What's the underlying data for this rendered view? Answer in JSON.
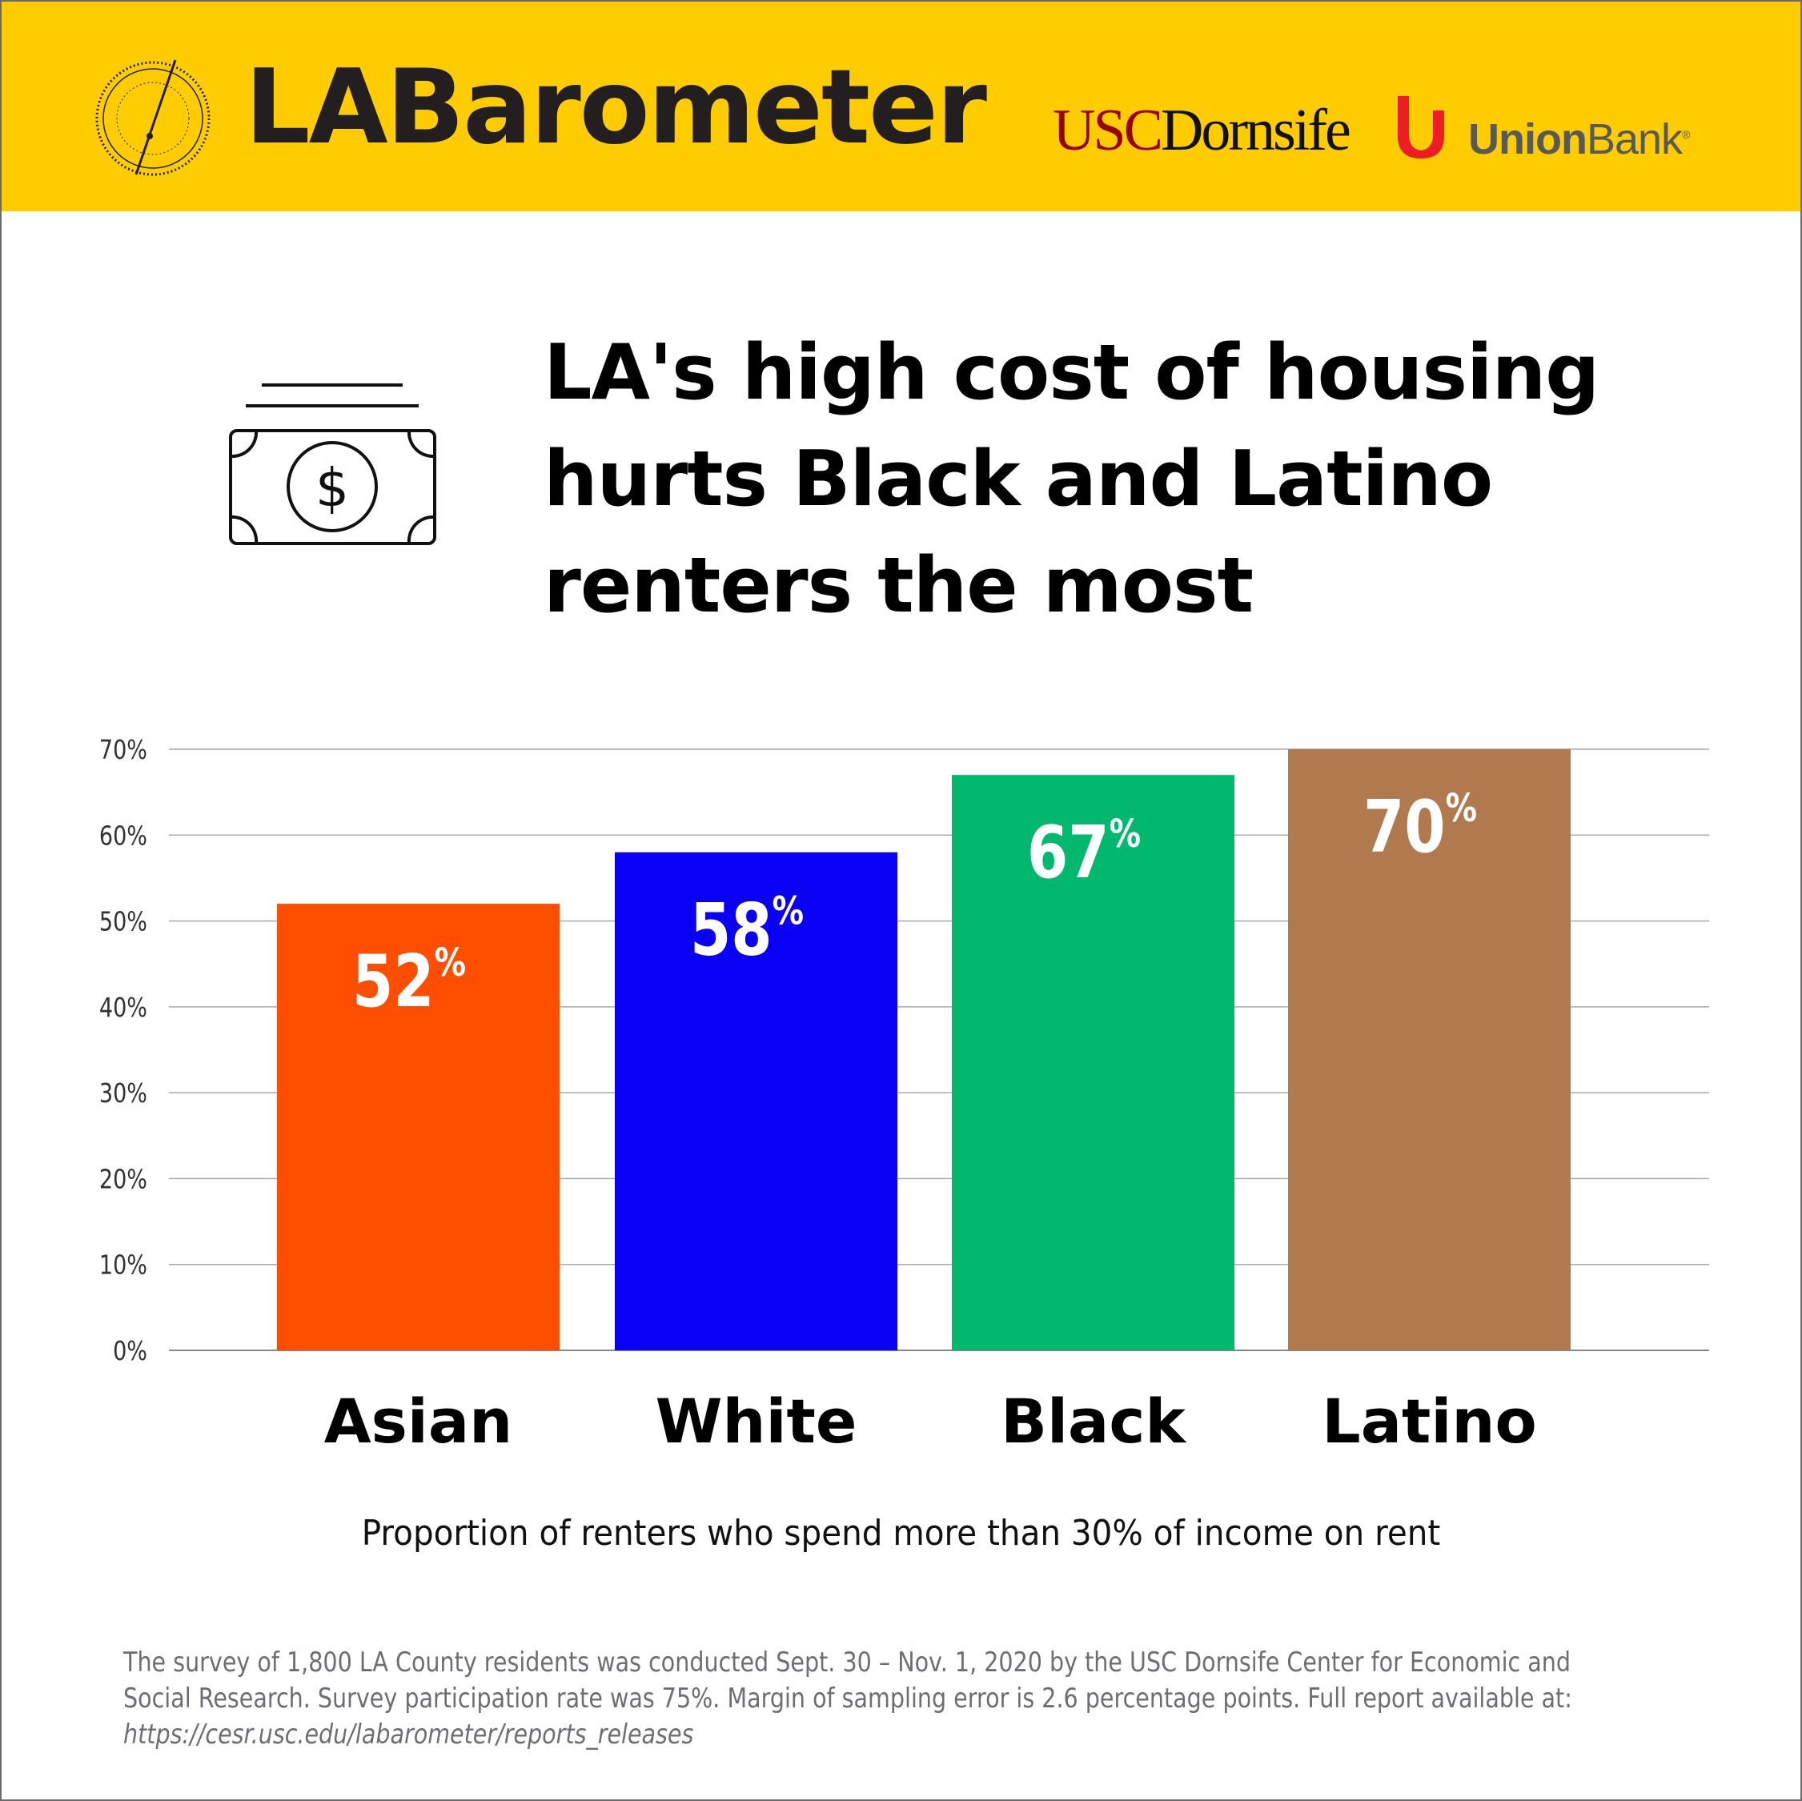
{
  "header": {
    "brand": "LABarometer",
    "partner1_a": "USC",
    "partner1_b": "Dornsife",
    "partner2_a": "Union",
    "partner2_b": "Bank",
    "partner2_mark": "®",
    "background": "#FFCC00"
  },
  "icon": "money-bill-icon",
  "title_lines": [
    "LA's high cost of housing",
    "hurts Black and Latino",
    "renters the most"
  ],
  "chart_data": {
    "type": "bar",
    "title": "LA's high cost of housing hurts Black and Latino renters the most",
    "categories": [
      "Asian",
      "White",
      "Black",
      "Latino"
    ],
    "values": [
      52,
      58,
      67,
      70
    ],
    "value_labels": [
      "52",
      "58",
      "67",
      "70"
    ],
    "value_suffix": "%",
    "colors": [
      "#FF4E00",
      "#0A00F5",
      "#00B86E",
      "#B07A4E"
    ],
    "xlabel": "Proportion of renters who spend more than 30% of income on rent",
    "ylabel": "",
    "ylim": [
      0,
      70
    ],
    "yticks": [
      "0%",
      "10%",
      "20%",
      "30%",
      "40%",
      "50%",
      "60%",
      "70%"
    ],
    "grid": true
  },
  "footnote": {
    "line1": "The survey of 1,800 LA County residents was conducted Sept. 30 – Nov. 1, 2020 by the USC Dornsife Center for Economic and",
    "line2": "Social Research. Survey participation rate was 75%. Margin of sampling error is 2.6 percentage points. Full report available at:",
    "url": "https://cesr.usc.edu/labarometer/reports_releases"
  }
}
